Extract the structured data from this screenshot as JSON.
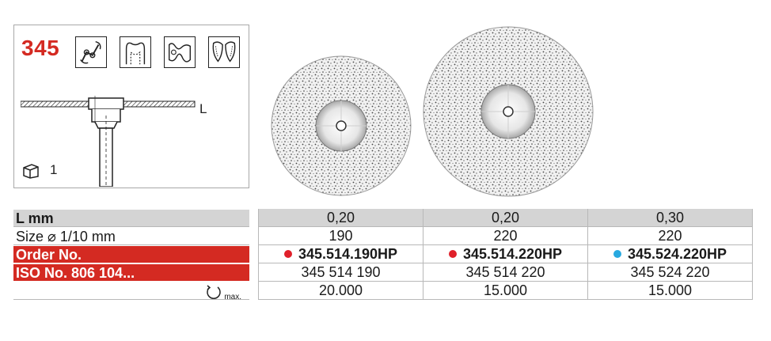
{
  "product": {
    "number": "345",
    "length_marker": "L",
    "pack_quantity": "1",
    "application_icons": [
      "clasp-icon",
      "crown-icon",
      "model-icon",
      "denture-icon"
    ]
  },
  "table": {
    "rows": [
      {
        "label": "L mm",
        "values": [
          "0,20",
          "0,20",
          "0,30"
        ]
      },
      {
        "label": "Size ⌀ 1/10 mm",
        "values": [
          "190",
          "220",
          "220"
        ]
      },
      {
        "label": "Order No.",
        "values": [
          "345.514.190HP",
          "345.514.220HP",
          "345.524.220HP"
        ],
        "dot_colors": [
          "#e0202a",
          "#e0202a",
          "#28a9e0"
        ]
      },
      {
        "label": "ISO No. 806 104...",
        "values": [
          "345 514 190",
          "345 514 220",
          "345 524 220"
        ]
      },
      {
        "label_suffix": "max.",
        "values": [
          "20.000",
          "15.000",
          "15.000"
        ],
        "label_icon": "rotation-icon"
      }
    ]
  },
  "colors": {
    "brand_red": "#d42a22",
    "header_gray": "#d4d4d4"
  }
}
